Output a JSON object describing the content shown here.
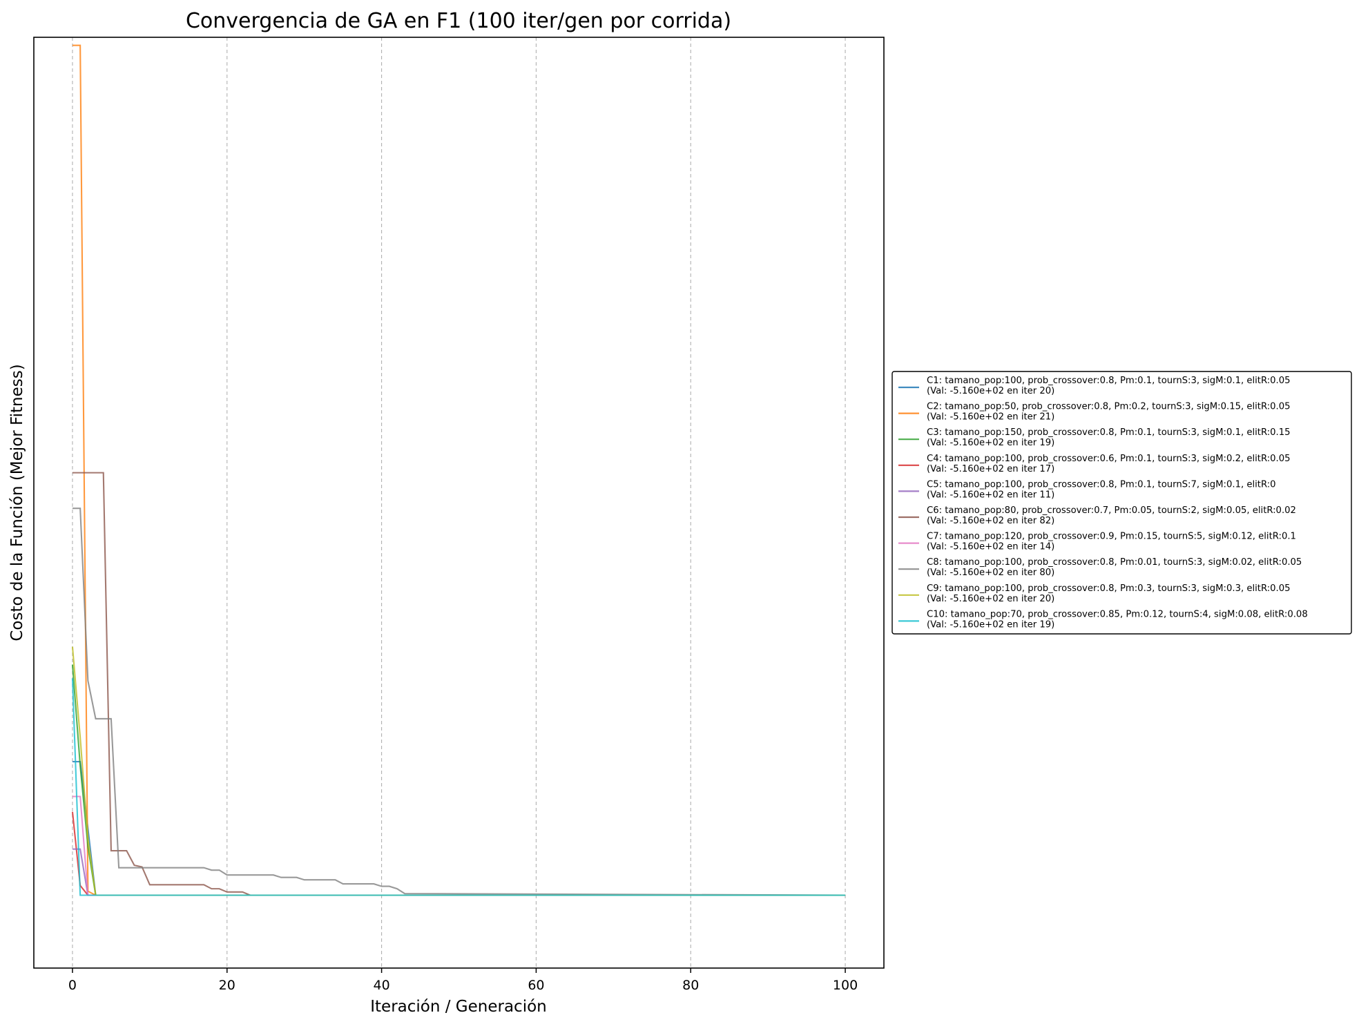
{
  "chart_data": {
    "type": "line",
    "title": "Convergencia de GA en F1 (100 iter/gen por corrida)",
    "xlabel": "Iteración / Generación",
    "ylabel": "Costo de la Función (Mejor Fitness)",
    "xlim": [
      -5,
      105
    ],
    "ylim": [
      -525,
      -410
    ],
    "xticks": [
      0,
      20,
      40,
      60,
      80,
      100
    ],
    "grid": "x-only",
    "legend_position": "outside right",
    "series": [
      {
        "name": "C1: tamano_pop:100, prob_crossover:0.8, Pm:0.1, tournS:3, sigM:0.1, elitR:0.05",
        "sub": "(Val: -5.160e+02 en iter 20)",
        "color": "#1f77b4",
        "points": [
          [
            0,
            -499.5
          ],
          [
            1,
            -499.5
          ],
          [
            3,
            -516
          ],
          [
            100,
            -516
          ]
        ]
      },
      {
        "name": "C2: tamano_pop:50, prob_crossover:0.8, Pm:0.2, tournS:3, sigM:0.15, elitR:0.05",
        "sub": "(Val: -5.160e+02 en iter 21)",
        "color": "#ff7f0e",
        "points": [
          [
            0,
            -411
          ],
          [
            1,
            -411
          ],
          [
            2,
            -515.5
          ],
          [
            3,
            -516
          ],
          [
            100,
            -516
          ]
        ]
      },
      {
        "name": "C3: tamano_pop:150, prob_crossover:0.8, Pm:0.1, tournS:3, sigM:0.1, elitR:0.15",
        "sub": "(Val: -5.160e+02 en iter 19)",
        "color": "#2ca02c",
        "points": [
          [
            0,
            -487.5
          ],
          [
            1,
            -500
          ],
          [
            2,
            -510
          ],
          [
            3,
            -516
          ],
          [
            100,
            -516
          ]
        ]
      },
      {
        "name": "C4: tamano_pop:100, prob_crossover:0.6, Pm:0.1, tournS:3, sigM:0.2, elitR:0.05",
        "sub": "(Val: -5.160e+02 en iter 17)",
        "color": "#d62728",
        "points": [
          [
            0,
            -505.7
          ],
          [
            1,
            -514.8
          ],
          [
            2,
            -516
          ],
          [
            100,
            -516
          ]
        ]
      },
      {
        "name": "C5: tamano_pop:100, prob_crossover:0.8, Pm:0.1, tournS:7, sigM:0.1, elitR:0",
        "sub": "(Val: -5.160e+02 en iter 11)",
        "color": "#9467bd",
        "points": [
          [
            0,
            -510.3
          ],
          [
            1,
            -510.3
          ],
          [
            2,
            -516
          ],
          [
            100,
            -516
          ]
        ]
      },
      {
        "name": "C6: tamano_pop:80, prob_crossover:0.7, Pm:0.05, tournS:2, sigM:0.05, elitR:0.02",
        "sub": "(Val: -5.160e+02 en iter 82)",
        "color": "#8c564b",
        "points": [
          [
            0,
            -463.8
          ],
          [
            4,
            -463.8
          ],
          [
            5,
            -510.5
          ],
          [
            7,
            -510.5
          ],
          [
            8,
            -512.3
          ],
          [
            9,
            -512.5
          ],
          [
            10,
            -514.7
          ],
          [
            17,
            -514.7
          ],
          [
            18,
            -515.2
          ],
          [
            19,
            -515.2
          ],
          [
            20,
            -515.6
          ],
          [
            22,
            -515.6
          ],
          [
            23,
            -516
          ],
          [
            100,
            -516
          ]
        ]
      },
      {
        "name": "C7: tamano_pop:120, prob_crossover:0.9, Pm:0.15, tournS:5, sigM:0.12, elitR:0.1",
        "sub": "(Val: -5.160e+02 en iter 14)",
        "color": "#e377c2",
        "points": [
          [
            0,
            -503.8
          ],
          [
            1,
            -503.8
          ],
          [
            2,
            -516
          ],
          [
            100,
            -516
          ]
        ]
      },
      {
        "name": "C8: tamano_pop:100, prob_crossover:0.8, Pm:0.01, tournS:3, sigM:0.02, elitR:0.05",
        "sub": "(Val: -5.160e+02 en iter 80)",
        "color": "#7f7f7f",
        "points": [
          [
            0,
            -468.2
          ],
          [
            1,
            -468.2
          ],
          [
            2,
            -489.5
          ],
          [
            3,
            -494.2
          ],
          [
            5,
            -494.2
          ],
          [
            6,
            -512.6
          ],
          [
            17,
            -512.6
          ],
          [
            18,
            -512.9
          ],
          [
            19,
            -512.9
          ],
          [
            20,
            -513.5
          ],
          [
            26,
            -513.5
          ],
          [
            27,
            -513.8
          ],
          [
            29,
            -513.8
          ],
          [
            30,
            -514.1
          ],
          [
            34,
            -514.1
          ],
          [
            35,
            -514.6
          ],
          [
            39,
            -514.6
          ],
          [
            40,
            -514.9
          ],
          [
            41,
            -514.9
          ],
          [
            42,
            -515.2
          ],
          [
            43,
            -515.8
          ],
          [
            100,
            -516
          ]
        ]
      },
      {
        "name": "C9: tamano_pop:100, prob_crossover:0.8, Pm:0.3, tournS:3, sigM:0.3, elitR:0.05",
        "sub": "(Val: -5.160e+02 en iter 20)",
        "color": "#bcbd22",
        "points": [
          [
            0,
            -485.3
          ],
          [
            1,
            -496.5
          ],
          [
            2,
            -509
          ],
          [
            3,
            -516
          ],
          [
            100,
            -516
          ]
        ]
      },
      {
        "name": "C10: tamano_pop:70, prob_crossover:0.85, Pm:0.12, tournS:4, sigM:0.08, elitR:0.08",
        "sub": "(Val: -5.160e+02 en iter 19)",
        "color": "#17becf",
        "points": [
          [
            0,
            -489.2
          ],
          [
            1,
            -516
          ],
          [
            100,
            -516
          ]
        ]
      }
    ]
  }
}
